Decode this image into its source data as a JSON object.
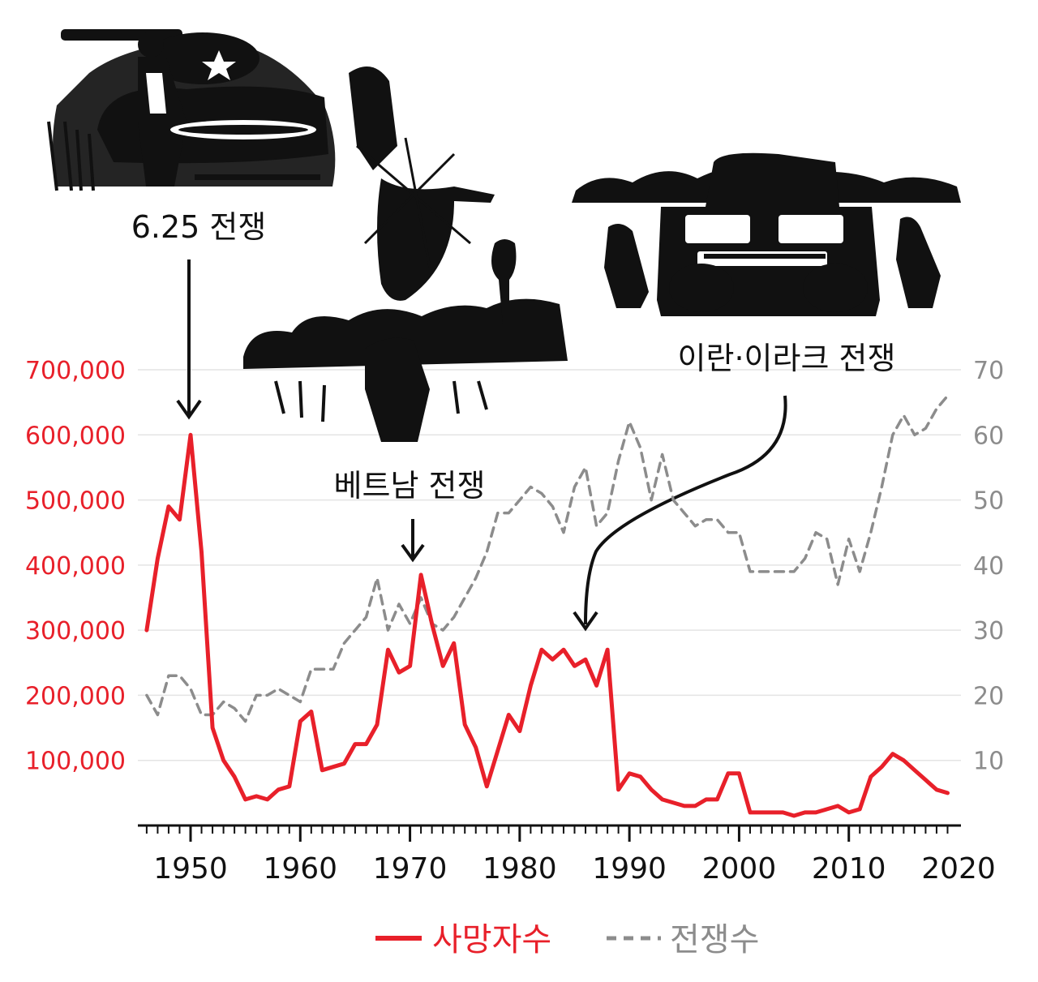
{
  "chart_data": {
    "type": "line",
    "x_ticks": [
      1950,
      1960,
      1970,
      1980,
      1990,
      2000,
      2010,
      2020
    ],
    "xlim": [
      1946,
      2019
    ],
    "y_left": {
      "ticks": [
        100000,
        200000,
        300000,
        400000,
        500000,
        600000,
        700000
      ],
      "tick_labels": [
        "100,000",
        "200,000",
        "300,000",
        "400,000",
        "500,000",
        "600,000",
        "700,000"
      ],
      "ylim": [
        0,
        700000
      ]
    },
    "y_right": {
      "ticks": [
        10,
        20,
        30,
        40,
        50,
        60,
        70
      ],
      "tick_labels": [
        "10",
        "20",
        "30",
        "40",
        "50",
        "60",
        "70"
      ],
      "ylim": [
        0,
        70
      ]
    },
    "grid": true,
    "legend_position": "bottom-center",
    "series": [
      {
        "name": "사망자수",
        "axis": "left",
        "color": "#e8202a",
        "style": "solid",
        "x": [
          1946,
          1947,
          1948,
          1949,
          1950,
          1951,
          1952,
          1953,
          1954,
          1955,
          1956,
          1957,
          1958,
          1959,
          1960,
          1961,
          1962,
          1963,
          1964,
          1965,
          1966,
          1967,
          1968,
          1969,
          1970,
          1971,
          1972,
          1973,
          1974,
          1975,
          1976,
          1977,
          1978,
          1979,
          1980,
          1981,
          1982,
          1983,
          1984,
          1985,
          1986,
          1987,
          1988,
          1989,
          1990,
          1991,
          1992,
          1993,
          1994,
          1995,
          1996,
          1997,
          1998,
          1999,
          2000,
          2001,
          2002,
          2003,
          2004,
          2005,
          2006,
          2007,
          2008,
          2009,
          2010,
          2011,
          2012,
          2013,
          2014,
          2015,
          2016,
          2017,
          2018,
          2019
        ],
        "values": [
          300000,
          410000,
          490000,
          470000,
          600000,
          420000,
          150000,
          100000,
          75000,
          40000,
          45000,
          40000,
          55000,
          60000,
          160000,
          175000,
          85000,
          90000,
          95000,
          125000,
          125000,
          155000,
          270000,
          235000,
          245000,
          385000,
          310000,
          245000,
          280000,
          155000,
          120000,
          60000,
          115000,
          170000,
          145000,
          215000,
          270000,
          255000,
          270000,
          245000,
          255000,
          215000,
          270000,
          55000,
          80000,
          75000,
          55000,
          40000,
          35000,
          30000,
          30000,
          40000,
          40000,
          80000,
          80000,
          20000,
          20000,
          20000,
          20000,
          15000,
          20000,
          20000,
          25000,
          30000,
          20000,
          25000,
          75000,
          90000,
          110000,
          100000,
          85000,
          70000,
          55000,
          50000
        ]
      },
      {
        "name": "전쟁수",
        "axis": "right",
        "color": "#8c8c8c",
        "style": "dashed",
        "x": [
          1946,
          1947,
          1948,
          1949,
          1950,
          1951,
          1952,
          1953,
          1954,
          1955,
          1956,
          1957,
          1958,
          1959,
          1960,
          1961,
          1962,
          1963,
          1964,
          1965,
          1966,
          1967,
          1968,
          1969,
          1970,
          1971,
          1972,
          1973,
          1974,
          1975,
          1976,
          1977,
          1978,
          1979,
          1980,
          1981,
          1982,
          1983,
          1984,
          1985,
          1986,
          1987,
          1988,
          1989,
          1990,
          1991,
          1992,
          1993,
          1994,
          1995,
          1996,
          1997,
          1998,
          1999,
          2000,
          2001,
          2002,
          2003,
          2004,
          2005,
          2006,
          2007,
          2008,
          2009,
          2010,
          2011,
          2012,
          2013,
          2014,
          2015,
          2016,
          2017,
          2018,
          2019
        ],
        "values": [
          20,
          17,
          23,
          23,
          21,
          17,
          17,
          19,
          18,
          16,
          20,
          20,
          21,
          20,
          19,
          24,
          24,
          24,
          28,
          30,
          32,
          38,
          30,
          34,
          31,
          35,
          31,
          30,
          32,
          35,
          38,
          42,
          48,
          48,
          50,
          52,
          51,
          49,
          45,
          52,
          55,
          46,
          48,
          56,
          62,
          58,
          50,
          57,
          50,
          48,
          46,
          47,
          47,
          45,
          45,
          39,
          39,
          39,
          39,
          39,
          41,
          45,
          44,
          37,
          44,
          39,
          45,
          52,
          60,
          63,
          60,
          61,
          64,
          66
        ]
      }
    ],
    "annotations": [
      {
        "text": "6.25 전쟁",
        "year": 1950
      },
      {
        "text": "베트남 전쟁",
        "year": 1970
      },
      {
        "text": "이란·이라크 전쟁",
        "year": 1986
      }
    ]
  }
}
